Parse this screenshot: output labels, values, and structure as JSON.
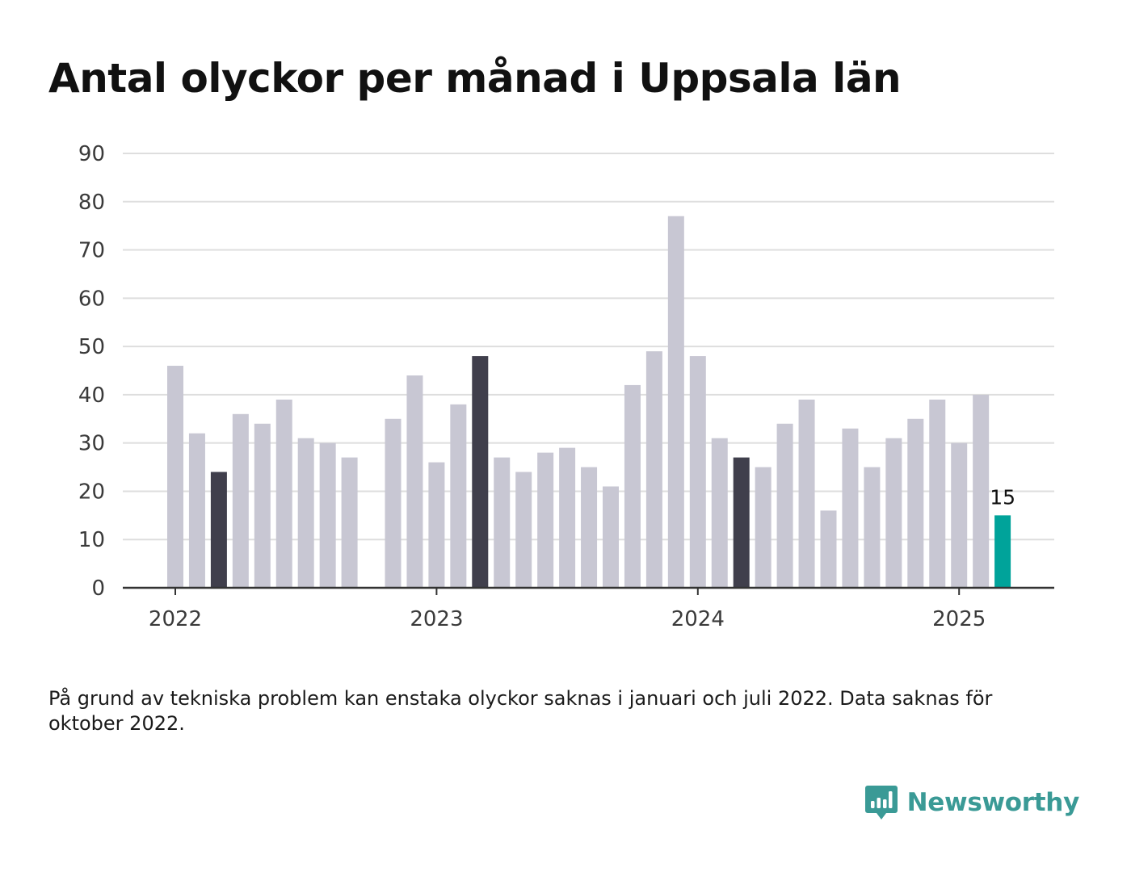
{
  "title": "Antal olyckor per månad i Uppsala län",
  "note": "På grund av tekniska problem kan enstaka olyckor saknas i januari och juli 2022. Data saknas för oktober 2022.",
  "brand": {
    "name": "Newsworthy",
    "icon": "bar-chart-speech-bubble-logo",
    "color": "#3a9a96"
  },
  "colors": {
    "default_bar": "#c8c7d3",
    "highlight_bar": "#403f4c",
    "latest_bar": "#00a39a",
    "gridline": "#dedede",
    "axis": "#333333"
  },
  "chart_data": {
    "type": "bar",
    "title": "Antal olyckor per månad i Uppsala län",
    "xlabel": "",
    "ylabel": "",
    "ylim": [
      0,
      90
    ],
    "yticks": [
      0,
      10,
      20,
      30,
      40,
      50,
      60,
      70,
      80,
      90
    ],
    "xticks": [
      {
        "label": "2022",
        "month": "2022-01"
      },
      {
        "label": "2023",
        "month": "2023-01"
      },
      {
        "label": "2024",
        "month": "2024-01"
      },
      {
        "label": "2025",
        "month": "2025-01"
      }
    ],
    "grid": true,
    "legend": "none",
    "categories": [
      "2022-01",
      "2022-02",
      "2022-03",
      "2022-04",
      "2022-05",
      "2022-06",
      "2022-07",
      "2022-08",
      "2022-09",
      "2022-10",
      "2022-11",
      "2022-12",
      "2023-01",
      "2023-02",
      "2023-03",
      "2023-04",
      "2023-05",
      "2023-06",
      "2023-07",
      "2023-08",
      "2023-09",
      "2023-10",
      "2023-11",
      "2023-12",
      "2024-01",
      "2024-02",
      "2024-03",
      "2024-04",
      "2024-05",
      "2024-06",
      "2024-07",
      "2024-08",
      "2024-09",
      "2024-10",
      "2024-11",
      "2024-12",
      "2025-01",
      "2025-02",
      "2025-03"
    ],
    "values": [
      46,
      32,
      24,
      36,
      34,
      39,
      31,
      30,
      27,
      null,
      35,
      44,
      26,
      38,
      48,
      27,
      24,
      28,
      29,
      25,
      21,
      42,
      49,
      77,
      48,
      31,
      27,
      25,
      34,
      39,
      16,
      33,
      25,
      31,
      35,
      39,
      30,
      40,
      15
    ],
    "highlighted_months": [
      "2022-03",
      "2023-03",
      "2024-03"
    ],
    "latest": {
      "month": "2025-03",
      "value": 15,
      "label": "15"
    }
  }
}
